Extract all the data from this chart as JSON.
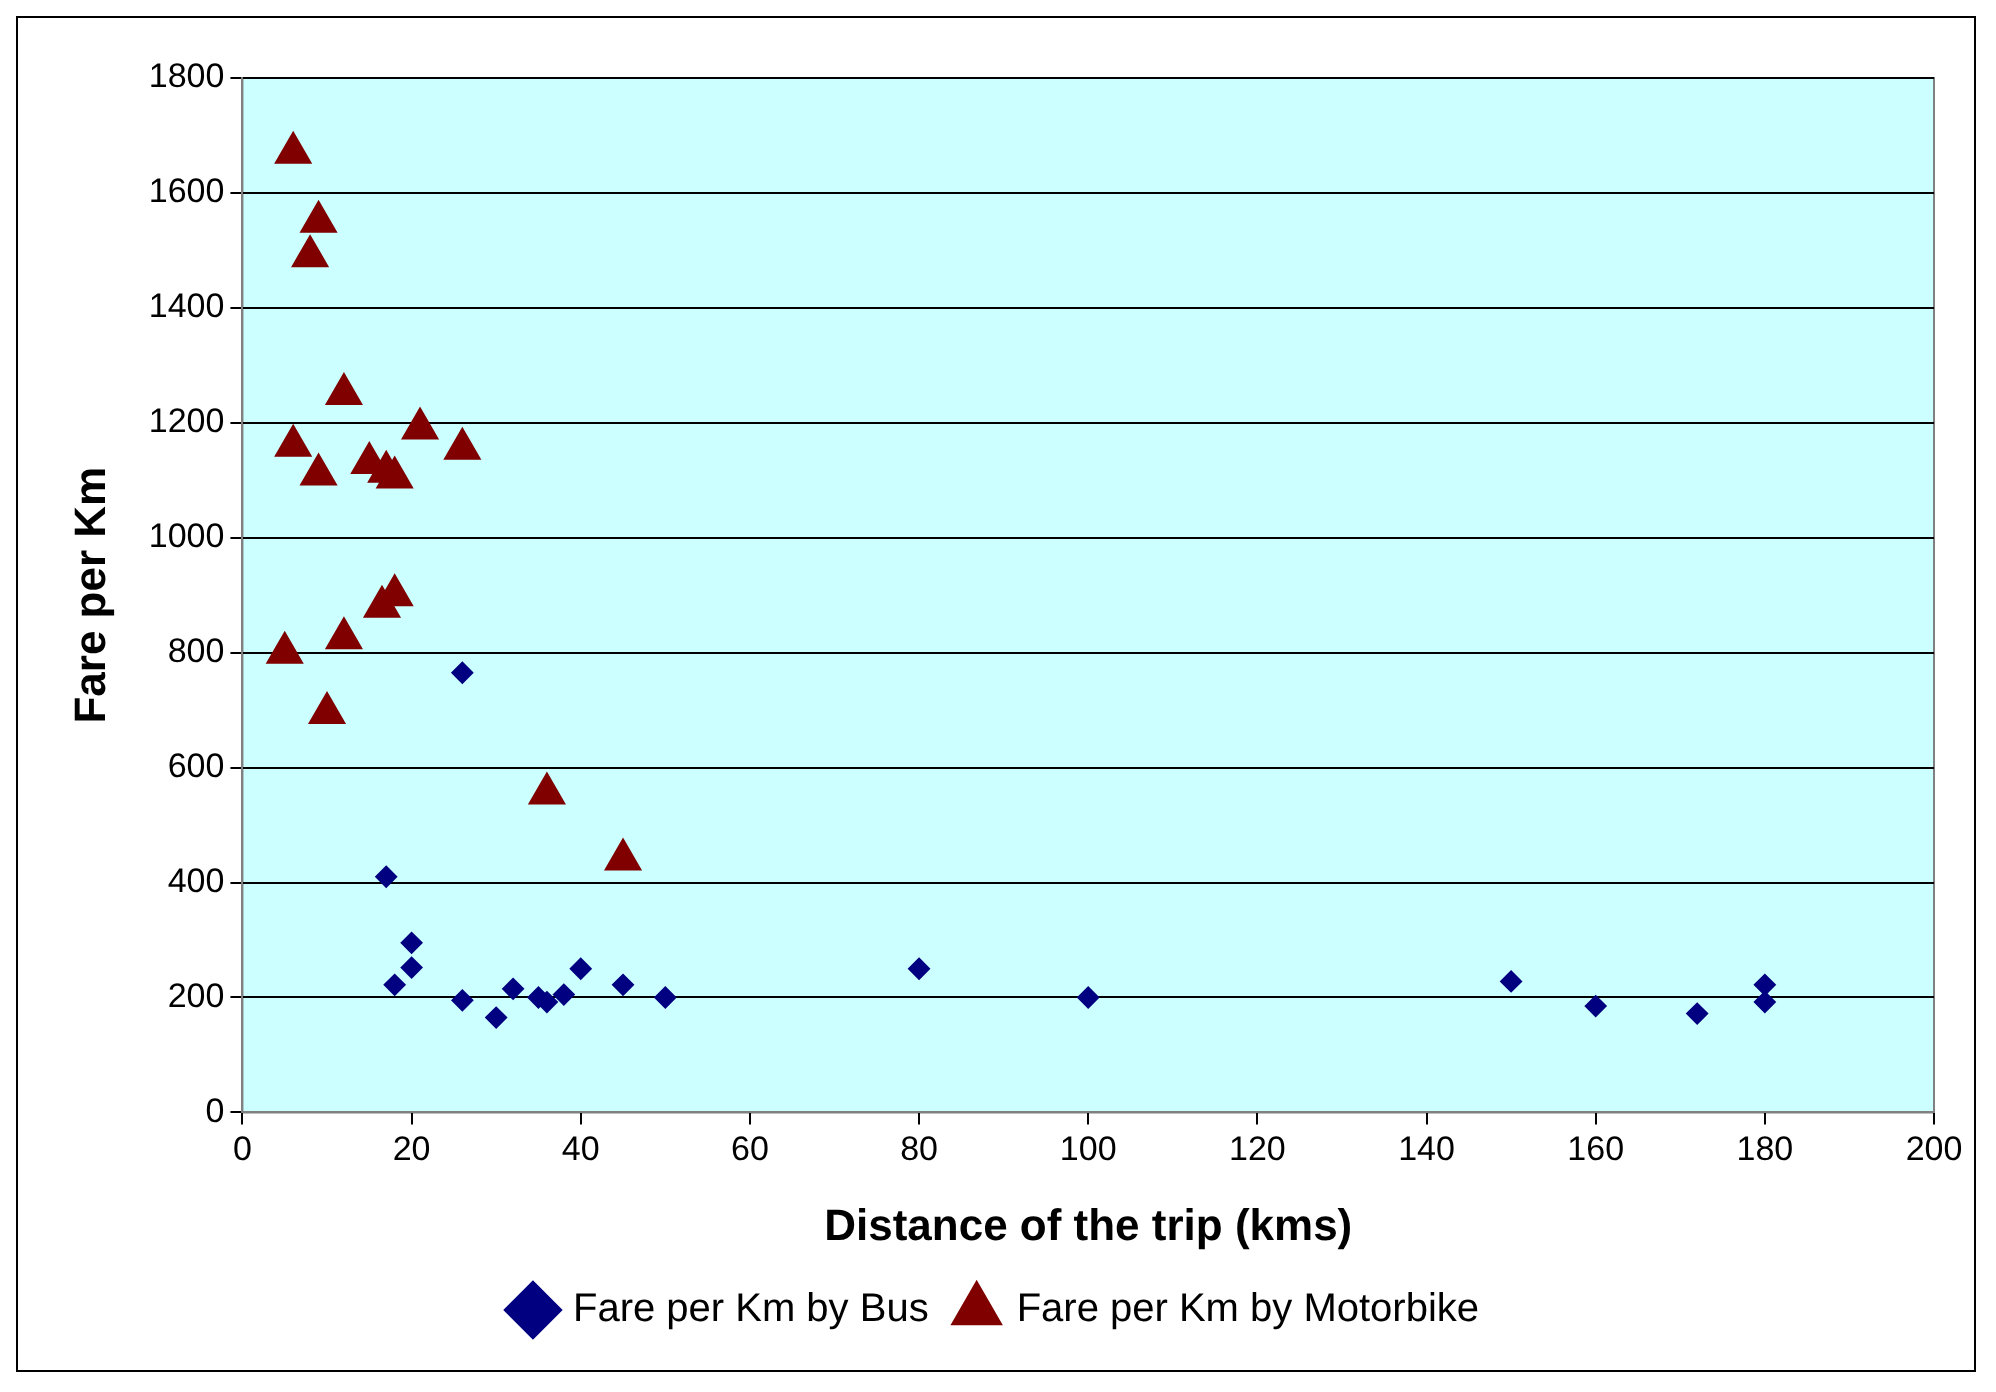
{
  "chart_data": {
    "type": "scatter",
    "xlabel": "Distance of the trip (kms)",
    "ylabel": "Fare per Km",
    "xlim": [
      0,
      200
    ],
    "xticks": [
      0,
      20,
      40,
      60,
      80,
      100,
      120,
      140,
      160,
      180,
      200
    ],
    "ylim": [
      0,
      1800
    ],
    "yticks": [
      0,
      200,
      400,
      600,
      800,
      1000,
      1200,
      1400,
      1600,
      1800
    ],
    "grid": "y",
    "legend": "bottom",
    "series": [
      {
        "name": "Fare per Km by Bus",
        "color": "#000080",
        "marker": "diamond",
        "x": [
          26,
          17,
          20,
          18,
          20,
          26,
          30,
          32,
          35,
          36,
          38,
          40,
          45,
          50,
          80,
          100,
          150,
          160,
          172,
          180,
          180
        ],
        "values": [
          765,
          410,
          295,
          222,
          252,
          195,
          165,
          215,
          200,
          192,
          205,
          250,
          222,
          200,
          250,
          200,
          228,
          185,
          172,
          222,
          192
        ]
      },
      {
        "name": "Fare per Km by Motorbike",
        "color": "#800000",
        "marker": "triangle",
        "x": [
          6,
          9,
          8,
          12,
          6,
          9,
          15,
          17,
          18,
          21,
          26,
          16.5,
          18,
          5,
          12,
          10,
          36,
          45
        ],
        "values": [
          1670,
          1550,
          1490,
          1250,
          1160,
          1110,
          1130,
          1115,
          1105,
          1190,
          1155,
          880,
          900,
          800,
          825,
          695,
          555,
          440
        ]
      }
    ]
  }
}
